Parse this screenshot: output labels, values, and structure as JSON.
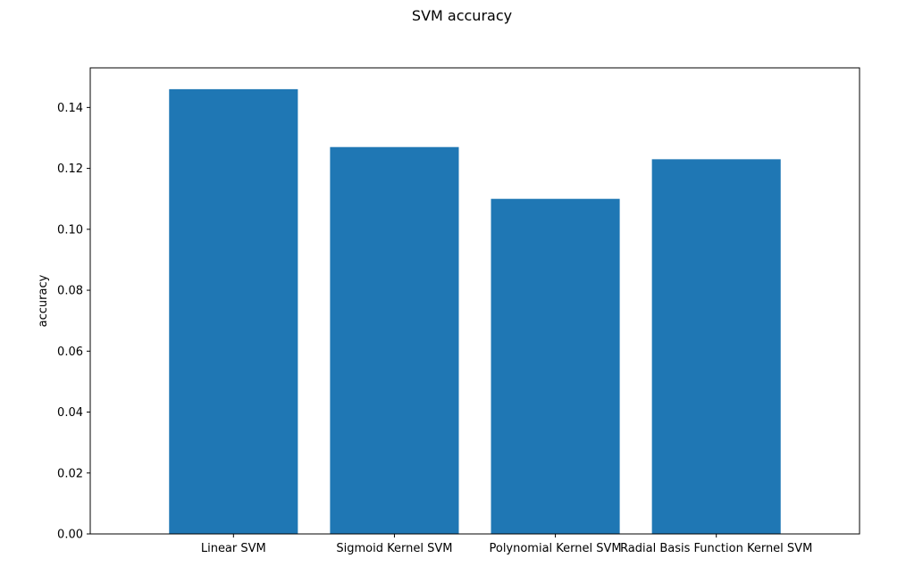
{
  "chart_data": {
    "type": "bar",
    "title": "SVM accuracy",
    "xlabel": "",
    "ylabel": "accuracy",
    "categories": [
      "Linear SVM",
      "Sigmoid Kernel SVM",
      "Polynomial Kernel SVM",
      "Radial Basis Function Kernel SVM"
    ],
    "values": [
      0.146,
      0.127,
      0.11,
      0.123
    ],
    "ylim": [
      0,
      0.153
    ],
    "yticks": [
      "0.00",
      "0.02",
      "0.04",
      "0.06",
      "0.08",
      "0.10",
      "0.12",
      "0.14"
    ],
    "grid": false,
    "bar_color": "#1f77b4"
  }
}
